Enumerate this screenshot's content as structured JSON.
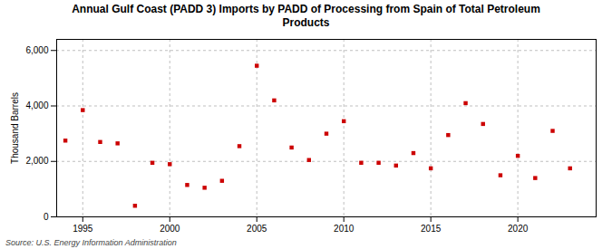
{
  "chart_data": {
    "type": "scatter",
    "title": "Annual Gulf Coast (PADD 3) Imports by PADD of Processing from Spain of Total Petroleum\nProducts",
    "ylabel": "Thousand Barrels",
    "source": "Source: U.S. Energy Information Administration",
    "x": [
      1994,
      1995,
      1996,
      1997,
      1998,
      1999,
      2000,
      2001,
      2002,
      2003,
      2004,
      2005,
      2006,
      2007,
      2008,
      2009,
      2010,
      2011,
      2012,
      2013,
      2014,
      2015,
      2016,
      2017,
      2018,
      2019,
      2020,
      2021,
      2022,
      2023
    ],
    "values": [
      2750,
      3850,
      2700,
      2650,
      400,
      1950,
      1900,
      1150,
      1050,
      1300,
      2550,
      5450,
      4200,
      2500,
      2050,
      3000,
      3450,
      1950,
      1950,
      1850,
      2300,
      1750,
      2950,
      4100,
      3350,
      1500,
      2200,
      1400,
      3100,
      1750
    ],
    "color": "#cc0000",
    "marker": "square",
    "xlim": [
      1993.5,
      2024.5
    ],
    "xticks": [
      1995,
      2000,
      2005,
      2010,
      2015,
      2020
    ],
    "ylim": [
      0,
      6400
    ],
    "yticks": [
      0,
      {
        "value": 2000,
        "label": "2,000"
      },
      {
        "value": 4000,
        "label": "4,000"
      },
      {
        "value": 6000,
        "label": "6,000"
      }
    ],
    "grid": true
  }
}
